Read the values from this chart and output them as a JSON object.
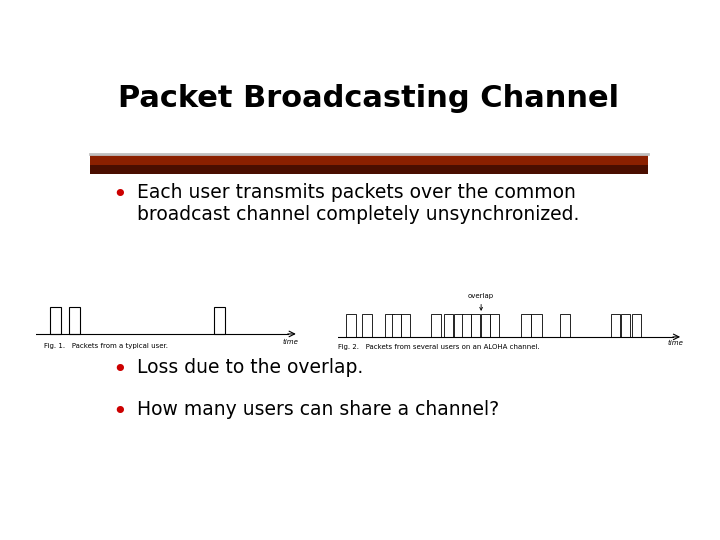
{
  "title": "Packet Broadcasting Channel",
  "bullet1": "Each user transmits packets over the common\nbroadcast channel completely unsynchronized.",
  "bullet2": "Loss due to the overlap.",
  "bullet3": "How many users can share a channel?",
  "fig1_caption": "Fig. 1.   Packets from a typical user.",
  "fig2_caption": "Fig. 2.   Packets from several users on an ALOHA channel.",
  "bg_color": "#ffffff",
  "title_color": "#000000",
  "bullet_color": "#cc0000"
}
